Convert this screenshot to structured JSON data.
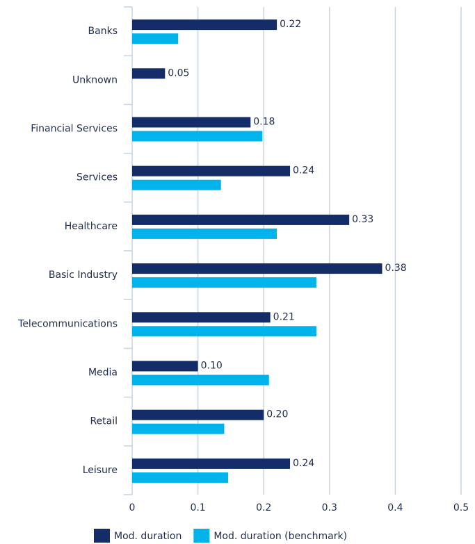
{
  "chart_data": {
    "type": "hbar",
    "categories": [
      "Banks",
      "Unknown",
      "Financial Services",
      "Services",
      "Healthcare",
      "Basic Industry",
      "Telecommunications",
      "Media",
      "Retail",
      "Leisure"
    ],
    "series": [
      {
        "name": "Mod. duration",
        "color": "#142d69",
        "values": [
          0.22,
          0.05,
          0.18,
          0.24,
          0.33,
          0.38,
          0.21,
          0.1,
          0.2,
          0.24
        ],
        "value_labels": [
          "0.22",
          "0.05",
          "0.18",
          "0.24",
          "0.33",
          "0.38",
          "0.21",
          "0.10",
          "0.20",
          "0.24"
        ]
      },
      {
        "name": "Mod. duration (benchmark)",
        "color": "#00b4eb",
        "values": [
          0.07,
          null,
          0.198,
          0.135,
          0.22,
          0.28,
          0.28,
          0.208,
          0.14,
          0.146
        ]
      }
    ],
    "xlim": [
      0,
      0.5
    ],
    "xticks": [
      0,
      0.1,
      0.2,
      0.3,
      0.4,
      0.5
    ],
    "grid": true,
    "legend": "bottom"
  }
}
